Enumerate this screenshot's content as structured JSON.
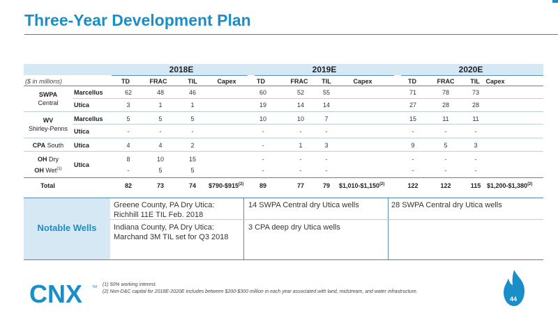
{
  "title": "Three-Year Development Plan",
  "years": [
    "2018E",
    "2019E",
    "2020E"
  ],
  "units_label": "($ in millions)",
  "column_headers": [
    "TD",
    "FRAC",
    "TIL",
    "Capex"
  ],
  "rows": [
    {
      "area": "SWPA",
      "sub": "Marcellus",
      "v": [
        [
          "62",
          "48",
          "46"
        ],
        [
          "60",
          "52",
          "55"
        ],
        [
          "71",
          "78",
          "73"
        ]
      ]
    },
    {
      "area": "Central",
      "sub": "Utica",
      "v": [
        [
          "3",
          "1",
          "1"
        ],
        [
          "19",
          "14",
          "14"
        ],
        [
          "27",
          "28",
          "28"
        ]
      ]
    },
    {
      "area": "WV",
      "sub": "Marcellus",
      "v": [
        [
          "5",
          "5",
          "5"
        ],
        [
          "10",
          "10",
          "7"
        ],
        [
          "15",
          "11",
          "11"
        ]
      ]
    },
    {
      "area": "Shirley-Penns",
      "sub": "Utica",
      "v": [
        [
          "-",
          "-",
          "-"
        ],
        [
          "-",
          "-",
          "-"
        ],
        [
          "-",
          "-",
          "-"
        ]
      ]
    },
    {
      "area": "CPA South",
      "sub": "Utica",
      "v": [
        [
          "4",
          "4",
          "2"
        ],
        [
          "-",
          "1",
          "3"
        ],
        [
          "9",
          "5",
          "3"
        ]
      ]
    },
    {
      "area": "OH Dry",
      "sub": "Utica",
      "v": [
        [
          "8",
          "10",
          "15"
        ],
        [
          "-",
          "-",
          "-"
        ],
        [
          "-",
          "-",
          "-"
        ]
      ]
    },
    {
      "area": "OH Wet",
      "sub": "",
      "v": [
        [
          "-",
          "5",
          "5"
        ],
        [
          "-",
          "-",
          "-"
        ],
        [
          "-",
          "-",
          "-"
        ]
      ]
    }
  ],
  "area_labels": {
    "swpa_bold": "SWPA",
    "swpa_sub": "Central",
    "wv_bold": "WV",
    "wv_sub": "Shirley-Penns",
    "cpa_bold": "CPA",
    "cpa_sub": "South",
    "oh_bold": "OH",
    "oh_dry": "Dry",
    "oh_wet_bold": "OH",
    "oh_wet": "Wet",
    "oh_wet_sup": "(1)"
  },
  "sub_labels": {
    "marcellus": "Marcellus",
    "utica": "Utica"
  },
  "total": {
    "label": "Total",
    "y2018": [
      "82",
      "73",
      "74",
      "$790-$915"
    ],
    "y2019": [
      "89",
      "77",
      "79",
      "$1,010-$1,150"
    ],
    "y2020": [
      "122",
      "122",
      "115",
      "$1,200-$1,380"
    ],
    "sup": "(2)"
  },
  "notable_wells": {
    "title": "Notable Wells",
    "col1": [
      "Greene County, PA Dry Utica: Richhill 11E TIL Feb. 2018",
      "Indiana County, PA Dry Utica: Marchand 3M TIL set for Q3 2018"
    ],
    "col2": [
      "14 SWPA Central dry Utica wells",
      "3 CPA deep dry Utica wells"
    ],
    "col3": [
      "28 SWPA Central dry Utica wells"
    ]
  },
  "footnotes": [
    "(1)   50% working interest.",
    "(2)   Non-D&C capital for 2018E-2020E includes between $200-$300 million in each year associated with land, midstream, and water infrastructure."
  ],
  "logo": {
    "text": "CNX",
    "tm": "TM",
    "icon": "flame-icon"
  },
  "page_number": "44",
  "colors": {
    "accent": "#1a8ec9",
    "band": "#d5e8f4"
  }
}
